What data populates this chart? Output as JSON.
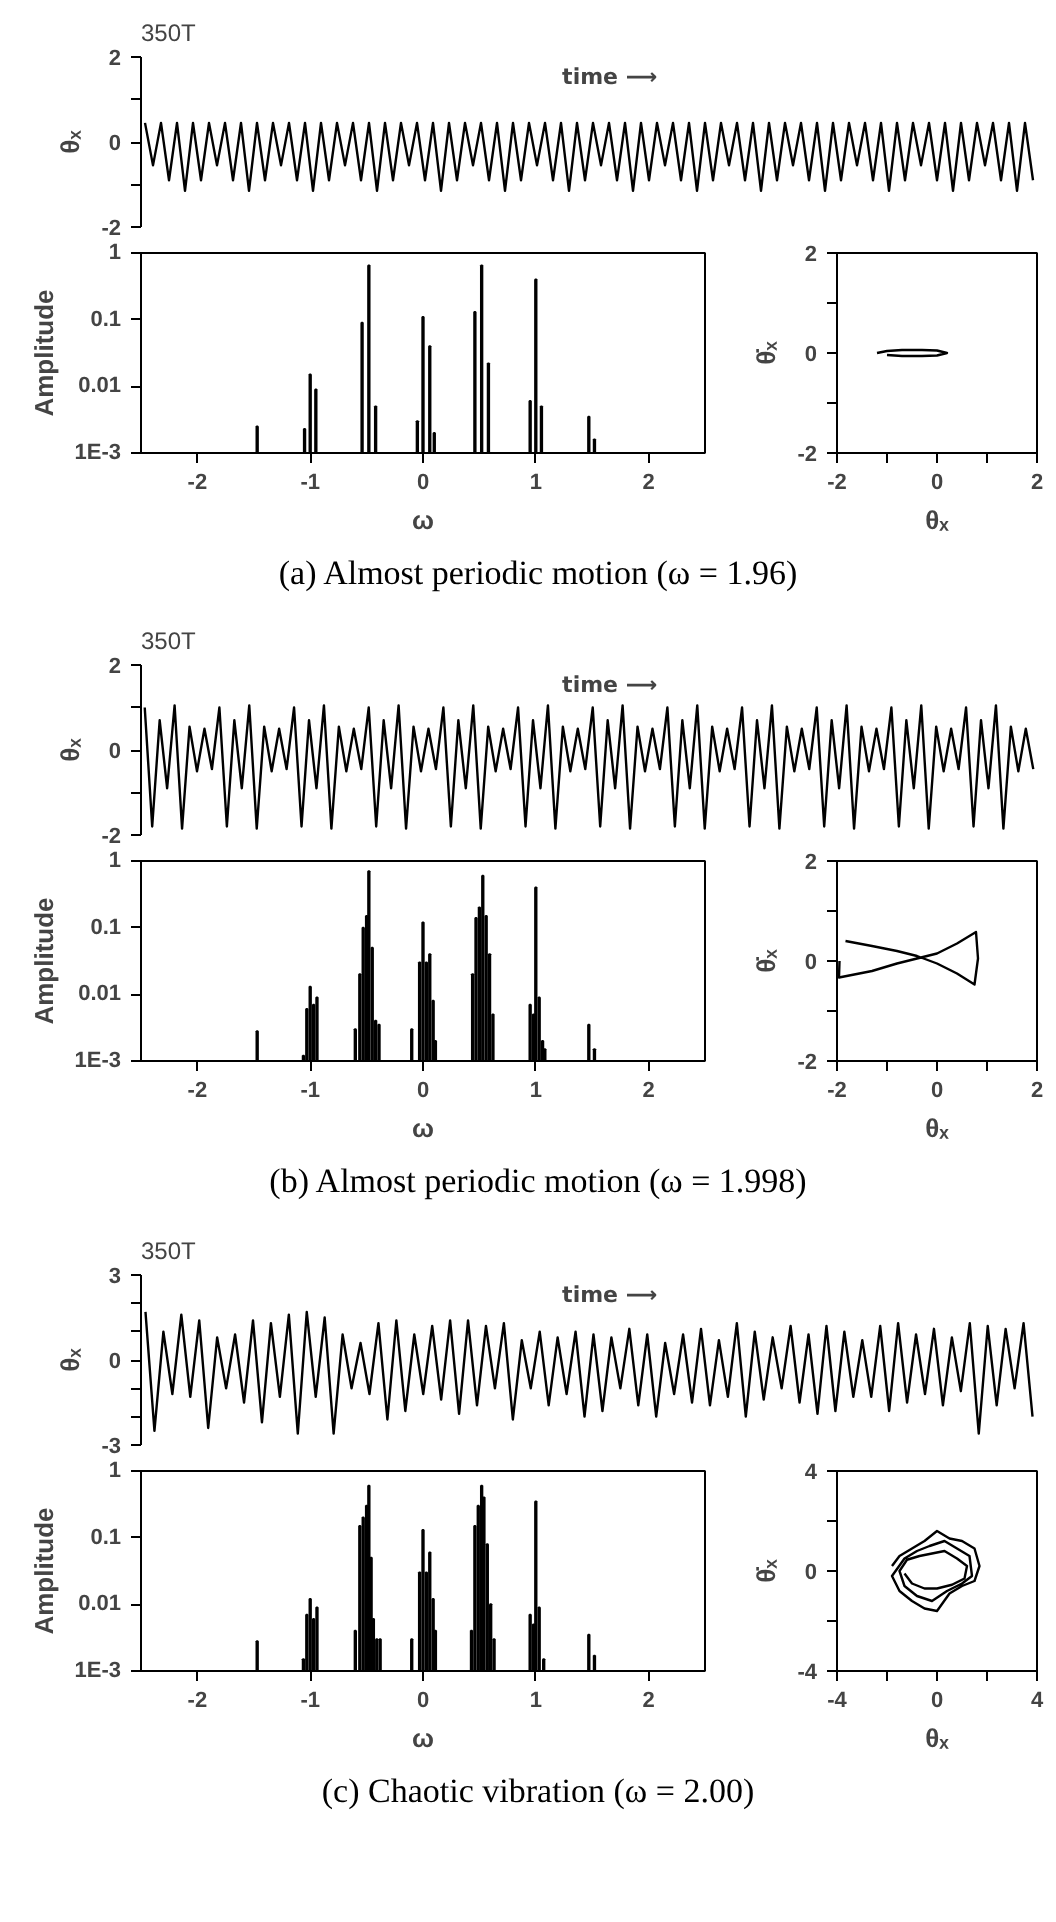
{
  "chart_data": [
    {
      "type": "line",
      "ylabel": "θₓ",
      "annotations": [
        "350T",
        "time ⟶"
      ],
      "tick_labels": "y",
      "ylim": [
        -2,
        2
      ],
      "yticks": [
        -2,
        {
          "value": -1,
          "label": null
        },
        0,
        {
          "value": 1,
          "label": null
        },
        2
      ],
      "categories": [
        null,
        null,
        null,
        null,
        null,
        null,
        null,
        null,
        null,
        null,
        null,
        null,
        null,
        null,
        null,
        null,
        null,
        null,
        null,
        null,
        null,
        null,
        null,
        null,
        null,
        null,
        null,
        null,
        null,
        null,
        null,
        null,
        null,
        null,
        null,
        null,
        null,
        null,
        null,
        null,
        null,
        null,
        null,
        null,
        null,
        null,
        null,
        null,
        null,
        null,
        null,
        null,
        null,
        null,
        null,
        null,
        null,
        null,
        null,
        null,
        null,
        null,
        null,
        null,
        null,
        null,
        null,
        null,
        null,
        null,
        null,
        null,
        null,
        null,
        null,
        null,
        null,
        null,
        null,
        null,
        null,
        null,
        null,
        null,
        null,
        null,
        null,
        null,
        null,
        null,
        null,
        null,
        null,
        null,
        null,
        null,
        null,
        null,
        null,
        null,
        null,
        null,
        null,
        null,
        null,
        null,
        null,
        null,
        null,
        null,
        null,
        null
      ],
      "series": [
        {
          "color": "#000000",
          "values": [
            0.45,
            -0.55,
            0.45,
            -0.9,
            0.45,
            -1.15,
            0.45,
            -0.9,
            0.45,
            -0.55,
            0.45,
            -0.9,
            0.45,
            -1.15,
            0.45,
            -0.9,
            0.45,
            -0.55,
            0.45,
            -0.9,
            0.45,
            -1.15,
            0.45,
            -0.9,
            0.45,
            -0.55,
            0.45,
            -0.9,
            0.45,
            -1.15,
            0.45,
            -0.9,
            0.45,
            -0.55,
            0.45,
            -0.9,
            0.45,
            -1.15,
            0.45,
            -0.9,
            0.45,
            -0.55,
            0.45,
            -0.9,
            0.45,
            -1.15,
            0.45,
            -0.9,
            0.45,
            -0.55,
            0.45,
            -0.9,
            0.45,
            -1.15,
            0.45,
            -0.9,
            0.45,
            -0.55,
            0.45,
            -0.9,
            0.45,
            -1.15,
            0.45,
            -0.9,
            0.45,
            -0.55,
            0.45,
            -0.9,
            0.45,
            -1.15,
            0.45,
            -0.9,
            0.45,
            -0.55,
            0.45,
            -0.9,
            0.45,
            -1.15,
            0.45,
            -0.9,
            0.45,
            -0.55,
            0.45,
            -0.9,
            0.45,
            -1.15,
            0.45,
            -0.9,
            0.45,
            -0.55,
            0.45,
            -0.9,
            0.45,
            -1.15,
            0.45,
            -0.9,
            0.45,
            -0.55,
            0.45,
            -0.9,
            0.45,
            -1.15,
            0.45,
            -0.9,
            0.45,
            -0.55,
            0.45,
            -0.9,
            0.45,
            -1.15,
            0.45,
            -0.9
          ]
        }
      ]
    },
    {
      "type": "bar",
      "xlabel": "ω",
      "ylabel": "Amplitude",
      "annotations": [
        "(a) Almost periodic motion (ω = 1.96)"
      ],
      "log": "y",
      "xlim": [
        -2.5,
        2.5
      ],
      "xticks": [
        -2,
        -1,
        0,
        1,
        2
      ],
      "ylim": [
        0.001,
        1
      ],
      "yticks": [
        {
          "value": 0.001,
          "label": "1E-3"
        },
        0.01,
        0.1,
        1
      ],
      "series": [
        {
          "color": "#000000",
          "x": [
            -1.47,
            -1.05,
            -1.0,
            -0.95,
            -0.54,
            -0.48,
            -0.42,
            -0.05,
            0.0,
            0.06,
            0.1,
            0.46,
            0.52,
            0.58,
            0.95,
            1.0,
            1.05,
            1.47,
            1.52
          ],
          "values": [
            0.0025,
            0.0023,
            0.015,
            0.009,
            0.09,
            0.65,
            0.005,
            0.003,
            0.11,
            0.04,
            0.002,
            0.13,
            0.65,
            0.022,
            0.006,
            0.4,
            0.005,
            0.0035,
            0.0016
          ]
        }
      ]
    },
    {
      "type": "line",
      "xlabel": "θₓ",
      "ylabel": "θ̇ₓ",
      "xlim": [
        -2,
        2
      ],
      "ylim": [
        -2,
        2
      ],
      "xticks": [
        -2,
        {
          "value": -1,
          "label": null
        },
        0,
        {
          "value": 1,
          "label": null
        },
        2
      ],
      "yticks": [
        -2,
        {
          "value": -1,
          "label": null
        },
        0,
        {
          "value": 1,
          "label": null
        },
        2
      ],
      "series": [
        {
          "color": "#000000",
          "x": [
            -1.2,
            -1.0,
            -0.7,
            -0.3,
            0.0,
            0.2,
            0.0,
            -0.3,
            -0.7,
            -1.0
          ],
          "values": [
            0.0,
            0.04,
            0.06,
            0.06,
            0.05,
            0.0,
            -0.05,
            -0.06,
            -0.06,
            -0.04
          ]
        }
      ]
    },
    {
      "type": "line",
      "ylabel": "θₓ",
      "annotations": [
        "350T",
        "time ⟶"
      ],
      "tick_labels": "y",
      "ylim": [
        -2,
        2
      ],
      "yticks": [
        -2,
        {
          "value": -1,
          "label": null
        },
        0,
        {
          "value": 1,
          "label": null
        },
        2
      ],
      "categories": [
        null,
        null,
        null,
        null,
        null,
        null,
        null,
        null,
        null,
        null,
        null,
        null,
        null,
        null,
        null,
        null,
        null,
        null,
        null,
        null,
        null,
        null,
        null,
        null,
        null,
        null,
        null,
        null,
        null,
        null,
        null,
        null,
        null,
        null,
        null,
        null,
        null,
        null,
        null,
        null,
        null,
        null,
        null,
        null,
        null,
        null,
        null,
        null,
        null,
        null,
        null,
        null,
        null,
        null,
        null,
        null,
        null,
        null,
        null,
        null,
        null,
        null,
        null,
        null,
        null,
        null,
        null,
        null,
        null,
        null,
        null,
        null,
        null,
        null,
        null,
        null,
        null,
        null,
        null,
        null,
        null,
        null,
        null,
        null,
        null,
        null,
        null,
        null,
        null,
        null,
        null,
        null,
        null,
        null,
        null,
        null,
        null,
        null,
        null,
        null,
        null,
        null,
        null,
        null,
        null,
        null,
        null,
        null,
        null,
        null,
        null,
        null,
        null,
        null,
        null,
        null,
        null,
        null,
        null,
        null
      ],
      "series": [
        {
          "color": "#000000",
          "values": [
            1.0,
            -1.8,
            0.7,
            -0.9,
            1.05,
            -1.85,
            0.55,
            -0.5,
            0.5,
            -0.45,
            1.0,
            -1.8,
            0.7,
            -0.9,
            1.05,
            -1.85,
            0.55,
            -0.5,
            0.5,
            -0.45,
            1.0,
            -1.8,
            0.7,
            -0.9,
            1.05,
            -1.85,
            0.55,
            -0.5,
            0.5,
            -0.45,
            1.0,
            -1.8,
            0.7,
            -0.9,
            1.05,
            -1.85,
            0.55,
            -0.5,
            0.5,
            -0.45,
            1.0,
            -1.8,
            0.7,
            -0.9,
            1.05,
            -1.85,
            0.55,
            -0.5,
            0.5,
            -0.45,
            1.0,
            -1.8,
            0.7,
            -0.9,
            1.05,
            -1.85,
            0.55,
            -0.5,
            0.5,
            -0.45,
            1.0,
            -1.8,
            0.7,
            -0.9,
            1.05,
            -1.85,
            0.55,
            -0.5,
            0.5,
            -0.45,
            1.0,
            -1.8,
            0.7,
            -0.9,
            1.05,
            -1.85,
            0.55,
            -0.5,
            0.5,
            -0.45,
            1.0,
            -1.8,
            0.7,
            -0.9,
            1.05,
            -1.85,
            0.55,
            -0.5,
            0.5,
            -0.45,
            1.0,
            -1.8,
            0.7,
            -0.9,
            1.05,
            -1.85,
            0.55,
            -0.5,
            0.5,
            -0.45,
            1.0,
            -1.8,
            0.7,
            -0.9,
            1.05,
            -1.85,
            0.55,
            -0.5,
            0.5,
            -0.45,
            1.0,
            -1.8,
            0.7,
            -0.9,
            1.05,
            -1.85,
            0.55,
            -0.5,
            0.5,
            -0.45
          ]
        }
      ]
    },
    {
      "type": "bar",
      "xlabel": "ω",
      "ylabel": "Amplitude",
      "annotations": [
        "(b) Almost periodic motion (ω = 1.998)"
      ],
      "log": "y",
      "xlim": [
        -2.5,
        2.5
      ],
      "xticks": [
        -2,
        -1,
        0,
        1,
        2
      ],
      "ylim": [
        0.001,
        1
      ],
      "yticks": [
        {
          "value": 0.001,
          "label": "1E-3"
        },
        0.01,
        0.1,
        1
      ],
      "series": [
        {
          "color": "#000000",
          "x": [
            -1.47,
            -1.06,
            -1.03,
            -1.0,
            -0.97,
            -0.94,
            -0.6,
            -0.56,
            -0.53,
            -0.5,
            -0.48,
            -0.45,
            -0.42,
            -0.39,
            -0.1,
            -0.03,
            0.0,
            0.03,
            0.06,
            0.09,
            0.11,
            0.44,
            0.47,
            0.5,
            0.53,
            0.56,
            0.59,
            0.62,
            0.95,
            0.98,
            1.0,
            1.03,
            1.06,
            1.08,
            1.47,
            1.52
          ],
          "values": [
            0.0028,
            0.0012,
            0.006,
            0.013,
            0.007,
            0.009,
            0.003,
            0.02,
            0.1,
            0.15,
            0.7,
            0.05,
            0.004,
            0.0035,
            0.003,
            0.03,
            0.12,
            0.03,
            0.04,
            0.008,
            0.002,
            0.02,
            0.14,
            0.2,
            0.6,
            0.15,
            0.04,
            0.005,
            0.007,
            0.005,
            0.4,
            0.009,
            0.002,
            0.0015,
            0.0035,
            0.0015
          ]
        }
      ]
    },
    {
      "type": "line",
      "xlabel": "θₓ",
      "ylabel": "θ̇ₓ",
      "xlim": [
        -2,
        2
      ],
      "ylim": [
        -2,
        2
      ],
      "xticks": [
        -2,
        {
          "value": -1,
          "label": null
        },
        0,
        {
          "value": 1,
          "label": null
        },
        2
      ],
      "yticks": [
        -2,
        {
          "value": -1,
          "label": null
        },
        0,
        {
          "value": 1,
          "label": null
        },
        2
      ],
      "series": [
        {
          "color": "#000000",
          "x": [
            -1.83,
            -1.3,
            -0.8,
            -0.4,
            0.0,
            0.4,
            0.75,
            0.82,
            0.78,
            0.4,
            0.0,
            -0.4,
            -0.8,
            -1.3,
            -1.96,
            -1.95
          ],
          "values": [
            0.4,
            0.3,
            0.2,
            0.1,
            -0.05,
            -0.25,
            -0.47,
            0.05,
            0.58,
            0.35,
            0.15,
            0.05,
            -0.05,
            -0.2,
            -0.33,
            0.0
          ]
        }
      ]
    },
    {
      "type": "line",
      "ylabel": "θₓ",
      "annotations": [
        "350T",
        "time ⟶"
      ],
      "tick_labels": "y",
      "ylim": [
        -3,
        3
      ],
      "yticks": [
        -3,
        {
          "value": -2,
          "label": null
        },
        {
          "value": -1,
          "label": null
        },
        0,
        {
          "value": 1,
          "label": null
        },
        {
          "value": 2,
          "label": null
        },
        3
      ],
      "categories": [
        null,
        null,
        null,
        null,
        null,
        null,
        null,
        null,
        null,
        null,
        null,
        null,
        null,
        null,
        null,
        null,
        null,
        null,
        null,
        null,
        null,
        null,
        null,
        null,
        null,
        null,
        null,
        null,
        null,
        null,
        null,
        null,
        null,
        null,
        null,
        null,
        null,
        null,
        null,
        null,
        null,
        null,
        null,
        null,
        null,
        null,
        null,
        null,
        null,
        null,
        null,
        null,
        null,
        null,
        null,
        null,
        null,
        null,
        null,
        null,
        null,
        null,
        null,
        null,
        null,
        null,
        null,
        null,
        null,
        null,
        null,
        null,
        null,
        null,
        null,
        null,
        null,
        null,
        null,
        null,
        null,
        null,
        null,
        null,
        null,
        null,
        null,
        null,
        null,
        null,
        null,
        null,
        null,
        null,
        null,
        null,
        null,
        null,
        null,
        null
      ],
      "series": [
        {
          "color": "#000000",
          "values": [
            1.7,
            -2.5,
            1.0,
            -1.2,
            1.6,
            -1.3,
            1.4,
            -2.4,
            0.8,
            -1.0,
            0.9,
            -1.5,
            1.4,
            -2.2,
            1.3,
            -1.3,
            1.6,
            -2.6,
            1.7,
            -1.3,
            1.5,
            -2.6,
            0.9,
            -1.0,
            0.6,
            -1.2,
            1.3,
            -2.1,
            1.4,
            -1.8,
            0.9,
            -1.2,
            1.2,
            -1.4,
            1.4,
            -1.9,
            1.4,
            -1.6,
            1.2,
            -1.0,
            1.3,
            -2.1,
            0.7,
            -1.0,
            1.0,
            -1.6,
            0.8,
            -1.2,
            1.0,
            -2.0,
            0.9,
            -1.8,
            0.8,
            -1.0,
            1.1,
            -1.6,
            0.9,
            -2.0,
            0.6,
            -1.2,
            0.9,
            -1.5,
            1.1,
            -1.6,
            0.7,
            -1.3,
            1.3,
            -2.0,
            1.0,
            -1.4,
            0.8,
            -1.0,
            1.2,
            -1.5,
            0.9,
            -1.9,
            1.2,
            -1.8,
            1.0,
            -1.3,
            0.7,
            -1.3,
            1.2,
            -1.8,
            1.3,
            -1.5,
            0.9,
            -1.2,
            1.1,
            -1.6,
            0.8,
            -1.1,
            1.3,
            -2.6,
            1.2,
            -1.6,
            1.1,
            -1.0,
            1.3,
            -2.0
          ]
        }
      ]
    },
    {
      "type": "bar",
      "xlabel": "ω",
      "ylabel": "Amplitude",
      "annotations": [
        "(c) Chaotic vibration (ω = 2.00)"
      ],
      "log": "y",
      "xlim": [
        -2.5,
        2.5
      ],
      "xticks": [
        -2,
        -1,
        0,
        1,
        2
      ],
      "ylim": [
        0.001,
        1
      ],
      "yticks": [
        {
          "value": 0.001,
          "label": "1E-3"
        },
        0.01,
        0.1,
        1
      ],
      "series": [
        {
          "color": "#000000",
          "x": [
            -1.47,
            -1.06,
            -1.03,
            -1.0,
            -0.97,
            -0.94,
            -0.6,
            -0.56,
            -0.53,
            -0.5,
            -0.48,
            -0.46,
            -0.44,
            -0.41,
            -0.38,
            -0.1,
            -0.03,
            0.0,
            0.03,
            0.06,
            0.09,
            0.11,
            0.43,
            0.46,
            0.49,
            0.52,
            0.54,
            0.57,
            0.6,
            0.63,
            0.95,
            0.98,
            1.0,
            1.03,
            1.07,
            1.47,
            1.52
          ],
          "values": [
            0.0028,
            0.0015,
            0.007,
            0.012,
            0.006,
            0.009,
            0.004,
            0.15,
            0.2,
            0.3,
            0.6,
            0.05,
            0.006,
            0.003,
            0.003,
            0.003,
            0.03,
            0.13,
            0.03,
            0.06,
            0.012,
            0.004,
            0.004,
            0.15,
            0.3,
            0.6,
            0.4,
            0.08,
            0.01,
            0.003,
            0.007,
            0.005,
            0.35,
            0.009,
            0.0015,
            0.0035,
            0.0017
          ]
        }
      ]
    },
    {
      "type": "line",
      "xlabel": "θₓ",
      "ylabel": "θ̇ₓ",
      "xlim": [
        -4,
        4
      ],
      "ylim": [
        -4,
        4
      ],
      "xticks": [
        -4,
        {
          "value": -2,
          "label": null
        },
        0,
        {
          "value": 2,
          "label": null
        },
        4
      ],
      "yticks": [
        -4,
        {
          "value": -2,
          "label": null
        },
        0,
        {
          "value": 2,
          "label": null
        },
        4
      ],
      "series": [
        {
          "color": "#000000",
          "x": [
            -1.8,
            -1.5,
            -1.0,
            -0.5,
            0.0,
            0.5,
            1.0,
            1.5,
            1.7,
            1.5,
            1.0,
            0.5,
            0.0,
            -0.5,
            -1.0,
            -1.5,
            -1.8,
            -1.3,
            -0.8,
            -0.3,
            0.3,
            0.8,
            1.3,
            1.4,
            1.0,
            0.4,
            -0.2,
            -0.8,
            -1.3,
            -1.5,
            -1.2,
            -0.7,
            -0.2,
            0.3,
            0.8,
            1.2,
            1.1,
            0.6,
            0.0,
            -0.5,
            -1.0,
            -1.3
          ],
          "values": [
            0.2,
            0.6,
            0.9,
            1.2,
            1.6,
            1.3,
            1.2,
            0.9,
            0.2,
            -0.4,
            -0.6,
            -0.9,
            -1.6,
            -1.5,
            -1.2,
            -0.8,
            -0.2,
            0.5,
            0.8,
            1.0,
            1.2,
            0.9,
            0.6,
            -0.2,
            -0.5,
            -0.8,
            -1.2,
            -1.0,
            -0.6,
            0.0,
            0.45,
            0.6,
            0.7,
            0.8,
            0.5,
            0.2,
            -0.3,
            -0.55,
            -0.7,
            -0.7,
            -0.5,
            -0.1
          ]
        }
      ]
    }
  ]
}
